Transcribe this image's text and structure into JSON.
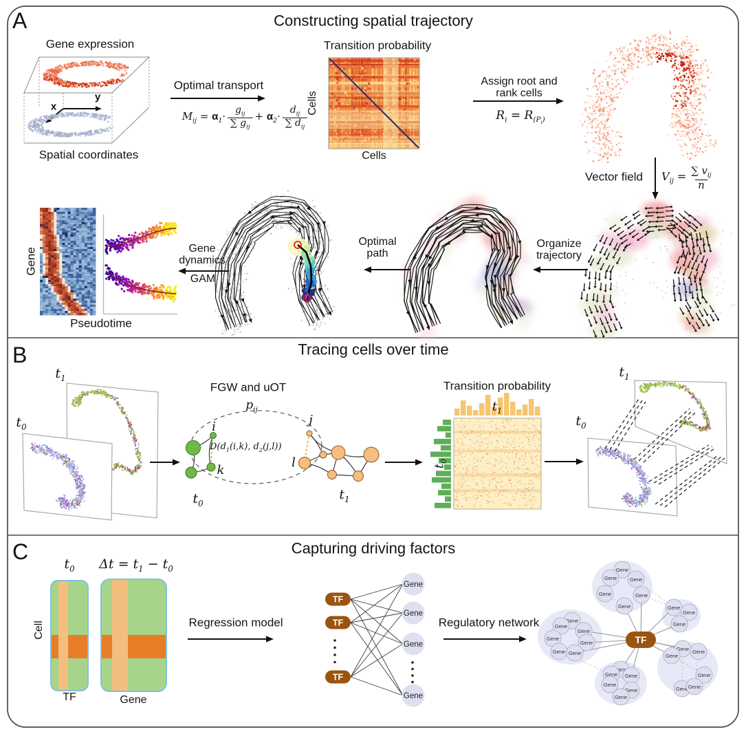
{
  "a": {
    "label": "A",
    "title": "Constructing spatial trajectory",
    "gene_expression": "Gene expression",
    "spatial_coordinates": "Spatial coordinates",
    "axis_x": "x",
    "axis_y": "y",
    "optimal_transport": "Optimal transport",
    "ot_lhs": "M<sub>ij</sub> = <b>α</b><sub>1</sub>·",
    "ot_f1_num": "g<sub>ij</sub>",
    "ot_f1_den": "∑ g<sub>ij</sub>",
    "ot_mid": "+ <b>α</b><sub>2</sub>·",
    "ot_f2_num": "d<sub>ij</sub>",
    "ot_f2_den": "∑ d<sub>ij</sub>",
    "transition_title": "Transition probability",
    "cells_x": "Cells",
    "cells_y": "Cells",
    "assign_line1": "Assign root and",
    "assign_line2": "rank cells",
    "assign_formula": "R<sub>i</sub> = R<sub>(P<sub>i</sub>)</sub>",
    "vector_field": "Vector field",
    "vf_lhs": "V<sub>ij</sub> =",
    "vf_num": "∑ v<sub>ij</sub>",
    "vf_den": "n",
    "organize_line1": "Organize",
    "organize_line2": "trajectory",
    "optimal_line1": "Optimal",
    "optimal_line2": "path",
    "gd_line1": "Gene",
    "gd_line2": "dynamics",
    "gd_line3": "GAM",
    "heatmap_y": "Gene",
    "heatmap_x": "Pseudotime"
  },
  "b": {
    "label": "B",
    "title": "Tracing cells over time",
    "t0": "t<sub>0</sub>",
    "t1": "t<sub>1</sub>",
    "fgw": "FGW and uOT",
    "pij": "p<sub>ij</sub>",
    "node_i": "i",
    "node_j": "j",
    "node_k": "k",
    "node_l": "l",
    "d_formula": "D(d<sub>1</sub>(i,k), d<sub>2</sub>(j,l))",
    "transition_title": "Transition probability"
  },
  "c": {
    "label": "C",
    "title": "Capturing driving factors",
    "t0": "t<sub>0</sub>",
    "dt_formula": "Δt = t<sub>1</sub> − t<sub>0</sub>",
    "cell": "Cell",
    "tf": "TF",
    "gene": "Gene",
    "regression": "Regression model",
    "regulatory": "Regulatory network",
    "tf_node": "TF",
    "gene_node": "Gene"
  },
  "colors": {
    "tf_brown": "#9a540f",
    "gene_lavender": "#dee0f0",
    "matrix_green": "#a8d38a",
    "stripe_light_orange": "#f3bf7e",
    "band_dark_orange": "#e87d28",
    "matrix_border_cyan": "#7fc3dc",
    "hist_orange": "#f5c570",
    "hist_green": "#5fae58",
    "graph_green": "#72b847",
    "graph_orange": "#f6bc80",
    "frame_gray": "#4a4a4a"
  }
}
